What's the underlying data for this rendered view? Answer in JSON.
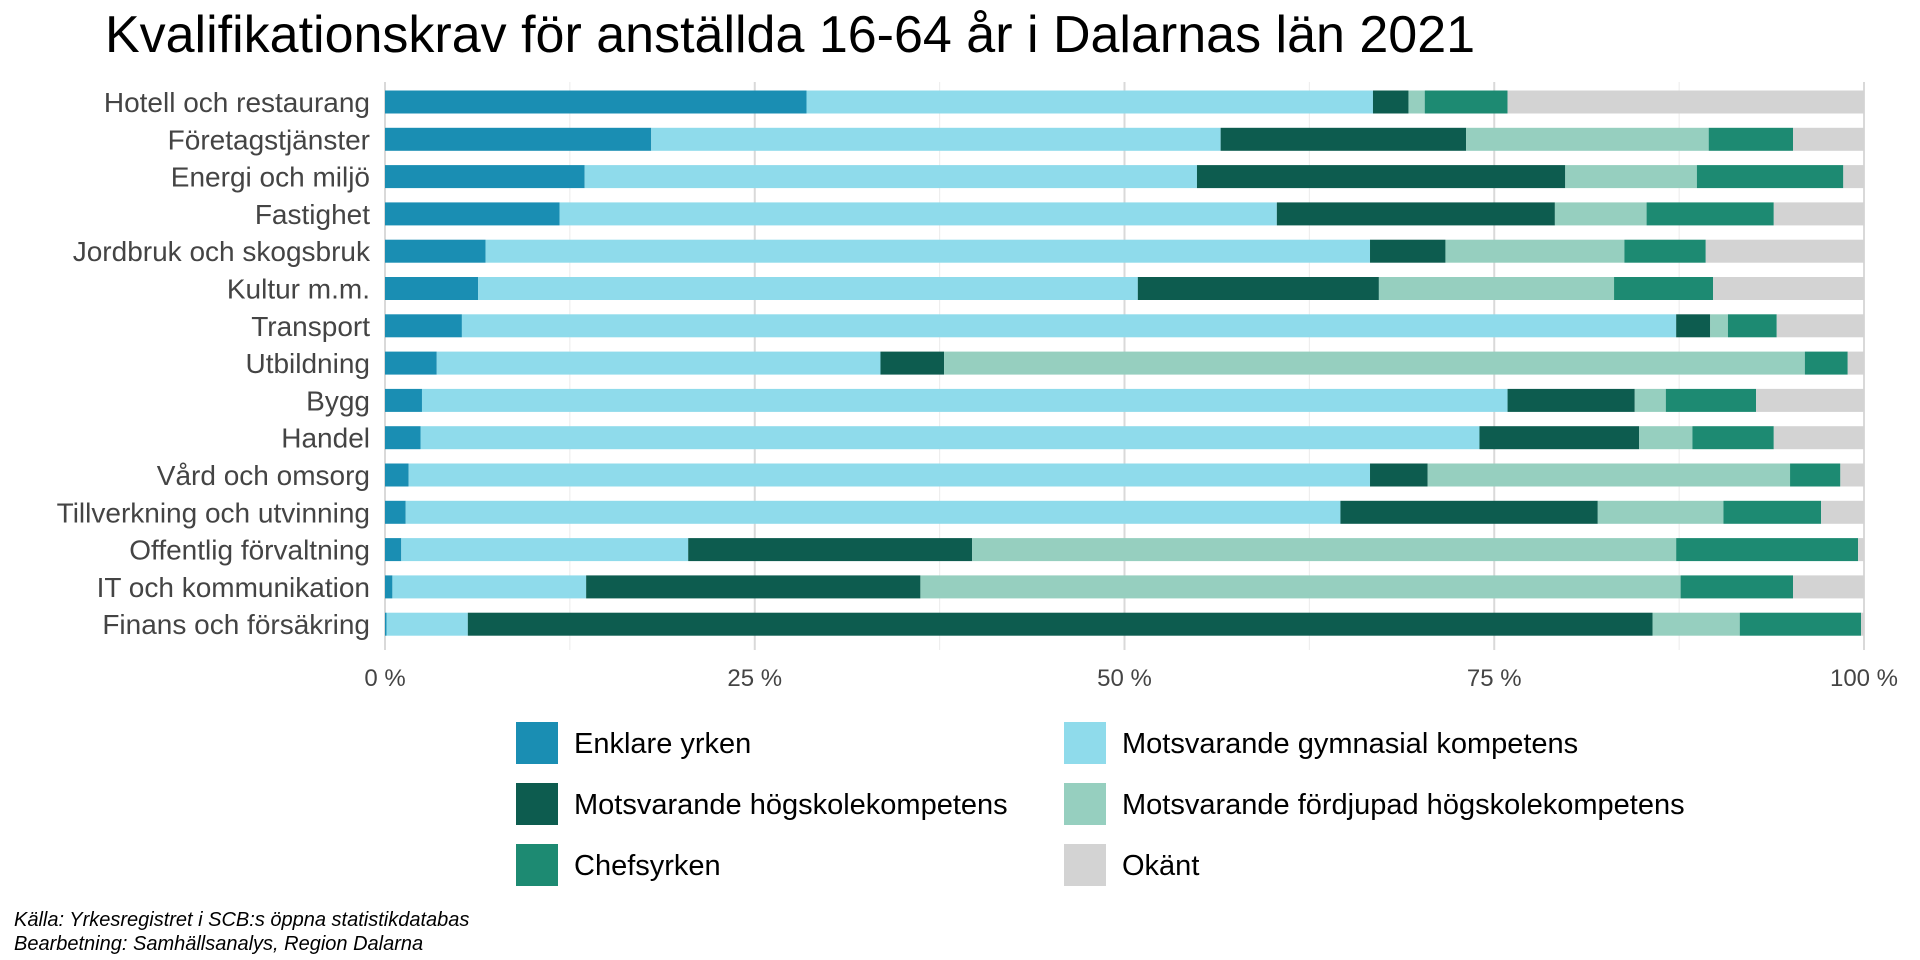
{
  "chart_data": {
    "type": "bar",
    "orientation": "horizontal",
    "stacked": "percent",
    "title": "Kvalifikationskrav för anställda 16-64 år i Dalarnas län 2021",
    "xlabel": "",
    "ylabel": "",
    "xlim": [
      0,
      100
    ],
    "x_ticks": [
      0,
      25,
      50,
      75,
      100
    ],
    "x_tick_labels": [
      "0 %",
      "25 %",
      "50 %",
      "75 %",
      "100 %"
    ],
    "grid": true,
    "legend_position": "bottom",
    "categories": [
      "Hotell och restaurang",
      "Företagstjänster",
      "Energi och miljö",
      "Fastighet",
      "Jordbruk och skogsbruk",
      "Kultur m.m.",
      "Transport",
      "Utbildning",
      "Bygg",
      "Handel",
      "Vård och omsorg",
      "Tillverkning och utvinning",
      "Offentlig förvaltning",
      "IT och kommunikation",
      "Finans och försäkring"
    ],
    "series": [
      {
        "name": "Enklare yrken",
        "color": "#1a8eb3",
        "values": [
          28.5,
          18.0,
          13.5,
          11.8,
          6.8,
          6.3,
          5.2,
          3.5,
          2.5,
          2.4,
          1.6,
          1.4,
          1.1,
          0.5,
          0.1
        ]
      },
      {
        "name": "Motsvarande gymnasial kompetens",
        "color": "#8fdbeb",
        "values": [
          38.3,
          38.5,
          41.4,
          48.5,
          59.8,
          44.6,
          82.1,
          30.0,
          73.4,
          71.6,
          65.0,
          63.2,
          19.4,
          13.1,
          5.5
        ]
      },
      {
        "name": "Motsvarande högskolekompetens",
        "color": "#0d5c4f",
        "values": [
          2.4,
          16.6,
          24.9,
          18.8,
          5.1,
          16.3,
          2.3,
          4.3,
          8.6,
          10.8,
          3.9,
          17.4,
          19.2,
          22.6,
          80.1
        ]
      },
      {
        "name": "Motsvarande fördjupad högskolekompetens",
        "color": "#96cfbf",
        "values": [
          1.1,
          16.4,
          8.9,
          6.2,
          12.1,
          15.9,
          1.2,
          58.2,
          2.1,
          3.6,
          24.5,
          8.5,
          47.6,
          51.4,
          5.9
        ]
      },
      {
        "name": "Chefsyrken",
        "color": "#1d8a72",
        "values": [
          5.6,
          5.7,
          9.9,
          8.6,
          5.5,
          6.7,
          3.3,
          2.9,
          6.1,
          5.5,
          3.4,
          6.6,
          12.3,
          7.6,
          8.2
        ]
      },
      {
        "name": "Okänt",
        "color": "#d3d3d3",
        "values": [
          24.1,
          4.8,
          1.4,
          6.1,
          10.7,
          10.2,
          5.9,
          1.1,
          7.3,
          6.1,
          1.6,
          2.9,
          0.4,
          4.8,
          0.2
        ]
      }
    ]
  },
  "caption": {
    "source": "Källa: Yrkesregistret i SCB:s öppna statistikdatabas",
    "processing": "Bearbetning: Samhällsanalys, Region Dalarna"
  }
}
